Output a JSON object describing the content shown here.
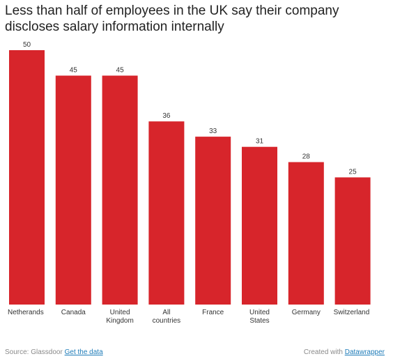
{
  "title": "Less than half of employees in the UK say their company discloses salary information internally",
  "chart_data": {
    "type": "bar",
    "categories": [
      [
        "Netherands"
      ],
      [
        "Canada"
      ],
      [
        "United",
        "Kingdom"
      ],
      [
        "All",
        "countries"
      ],
      [
        "France"
      ],
      [
        "United",
        "States"
      ],
      [
        "Germany"
      ],
      [
        "Switzerland"
      ]
    ],
    "values": [
      50,
      45,
      45,
      36,
      33,
      31,
      28,
      25
    ],
    "ylim": [
      0,
      50
    ],
    "grid": false,
    "legend": false
  },
  "colors": {
    "bar": "#d7252b"
  },
  "footer": {
    "source_label": "Source: Glassdoor",
    "data_link": "Get the data",
    "created_label": "Created with",
    "created_link": "Datawrapper"
  }
}
